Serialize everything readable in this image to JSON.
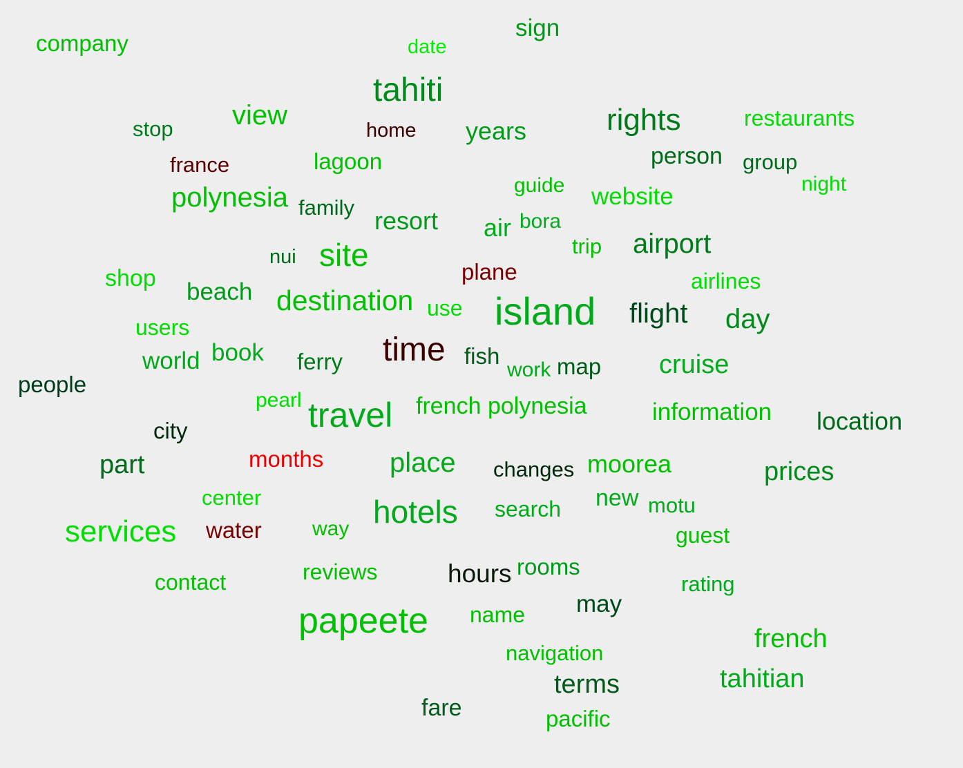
{
  "words": [
    {
      "text": "company",
      "color": "#00c000"
    },
    {
      "text": "date",
      "color": "#00ee00"
    },
    {
      "text": "sign",
      "color": "#009a1a"
    },
    {
      "text": "tahiti",
      "color": "#008a1a"
    },
    {
      "text": "stop",
      "color": "#007a1a"
    },
    {
      "text": "view",
      "color": "#00c000"
    },
    {
      "text": "home",
      "color": "#3a0000"
    },
    {
      "text": "years",
      "color": "#009a1a"
    },
    {
      "text": "rights",
      "color": "#007a1a"
    },
    {
      "text": "restaurants",
      "color": "#00dd00"
    },
    {
      "text": "france",
      "color": "#5a0000"
    },
    {
      "text": "lagoon",
      "color": "#00c000"
    },
    {
      "text": "person",
      "color": "#006a1a"
    },
    {
      "text": "group",
      "color": "#006a1a"
    },
    {
      "text": "night",
      "color": "#00dd00"
    },
    {
      "text": "guide",
      "color": "#00c000"
    },
    {
      "text": "polynesia",
      "color": "#00c000"
    },
    {
      "text": "family",
      "color": "#006a1a"
    },
    {
      "text": "website",
      "color": "#00dd00"
    },
    {
      "text": "resort",
      "color": "#009a1a"
    },
    {
      "text": "air",
      "color": "#00aa1a"
    },
    {
      "text": "bora",
      "color": "#00aa1a"
    },
    {
      "text": "trip",
      "color": "#00c000"
    },
    {
      "text": "airport",
      "color": "#007a1a"
    },
    {
      "text": "nui",
      "color": "#006a1a"
    },
    {
      "text": "site",
      "color": "#00c000"
    },
    {
      "text": "plane",
      "color": "#7a0000"
    },
    {
      "text": "shop",
      "color": "#00dd00"
    },
    {
      "text": "airlines",
      "color": "#00dd00"
    },
    {
      "text": "beach",
      "color": "#009a1a"
    },
    {
      "text": "destination",
      "color": "#00c000"
    },
    {
      "text": "use",
      "color": "#00dd00"
    },
    {
      "text": "island",
      "color": "#00aa1a"
    },
    {
      "text": "flight",
      "color": "#004a1a"
    },
    {
      "text": "day",
      "color": "#008a1a"
    },
    {
      "text": "users",
      "color": "#00dd00"
    },
    {
      "text": "time",
      "color": "#3a0000"
    },
    {
      "text": "fish",
      "color": "#005a1a"
    },
    {
      "text": "world",
      "color": "#00aa1a"
    },
    {
      "text": "book",
      "color": "#00aa1a"
    },
    {
      "text": "ferry",
      "color": "#007a1a"
    },
    {
      "text": "work",
      "color": "#00aa1a"
    },
    {
      "text": "map",
      "color": "#005a1a"
    },
    {
      "text": "cruise",
      "color": "#00aa1a"
    },
    {
      "text": "people",
      "color": "#003a1a"
    },
    {
      "text": "pearl",
      "color": "#00dd00"
    },
    {
      "text": "travel",
      "color": "#00aa1a"
    },
    {
      "text": "french polynesia",
      "color": "#00c000"
    },
    {
      "text": "information",
      "color": "#00c000"
    },
    {
      "text": "location",
      "color": "#006a1a"
    },
    {
      "text": "city",
      "color": "#002a0a"
    },
    {
      "text": "part",
      "color": "#006a1a"
    },
    {
      "text": "months",
      "color": "#ee0000"
    },
    {
      "text": "place",
      "color": "#00aa1a"
    },
    {
      "text": "changes",
      "color": "#002a0a"
    },
    {
      "text": "moorea",
      "color": "#00c000"
    },
    {
      "text": "prices",
      "color": "#008a1a"
    },
    {
      "text": "center",
      "color": "#00dd00"
    },
    {
      "text": "new",
      "color": "#00aa1a"
    },
    {
      "text": "motu",
      "color": "#00aa1a"
    },
    {
      "text": "services",
      "color": "#00dd00"
    },
    {
      "text": "water",
      "color": "#7a0000"
    },
    {
      "text": "way",
      "color": "#00c000"
    },
    {
      "text": "hotels",
      "color": "#00aa1a"
    },
    {
      "text": "search",
      "color": "#00aa1a"
    },
    {
      "text": "guest",
      "color": "#00c000"
    },
    {
      "text": "contact",
      "color": "#00c000"
    },
    {
      "text": "reviews",
      "color": "#00c000"
    },
    {
      "text": "hours",
      "color": "#0a1a0a"
    },
    {
      "text": "rooms",
      "color": "#009a1a"
    },
    {
      "text": "rating",
      "color": "#00aa1a"
    },
    {
      "text": "may",
      "color": "#004a1a"
    },
    {
      "text": "papeete",
      "color": "#00c000"
    },
    {
      "text": "name",
      "color": "#00c000"
    },
    {
      "text": "french",
      "color": "#00c000"
    },
    {
      "text": "navigation",
      "color": "#00c000"
    },
    {
      "text": "tahitian",
      "color": "#00aa1a"
    },
    {
      "text": "terms",
      "color": "#005a1a"
    },
    {
      "text": "fare",
      "color": "#005a1a"
    },
    {
      "text": "pacific",
      "color": "#00c000"
    }
  ]
}
